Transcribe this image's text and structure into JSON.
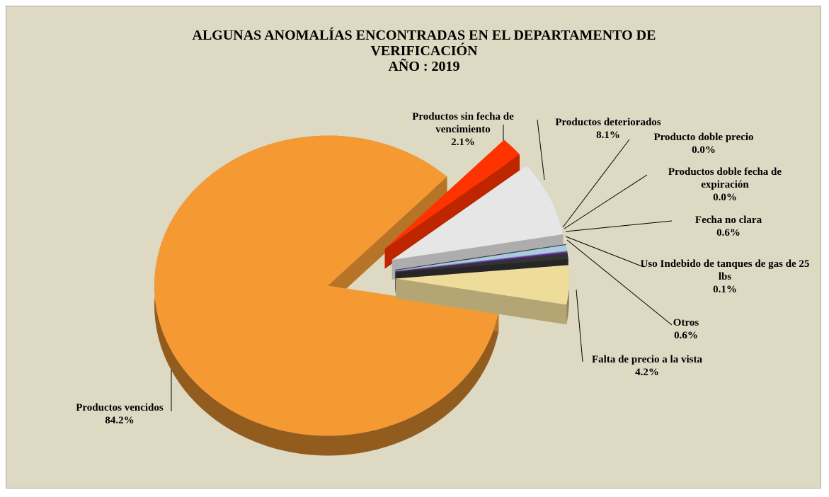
{
  "chart_data": {
    "type": "pie",
    "title": "ALGUNAS ANOMALÍAS ENCONTRADAS EN EL DEPARTAMENTO DE VERIFICACIÓN",
    "subtitle": "AÑO : 2019",
    "categories": [
      "Productos vencidos",
      "Productos sin fecha de vencimiento",
      "Productos deteriorados",
      "Producto doble precio",
      "Productos doble fecha de expiración",
      "Fecha no clara",
      "Uso Indebido de tanques de gas de 25 lbs",
      "Otros",
      "Falta de precio a la vista"
    ],
    "values": [
      84.2,
      2.1,
      8.1,
      0.0,
      0.0,
      0.6,
      0.1,
      0.6,
      4.2
    ],
    "value_labels": [
      "84.2%",
      "2.1%",
      "8.1%",
      "0.0%",
      "0.0%",
      "0.6%",
      "0.1%",
      "0.6%",
      "4.2%"
    ],
    "colors": [
      "#f59a33",
      "#ff3300",
      "#e6e6e6",
      "#222222",
      "#555555",
      "#a9cbe3",
      "#7030a0",
      "#333333",
      "#eedd9a"
    ]
  }
}
